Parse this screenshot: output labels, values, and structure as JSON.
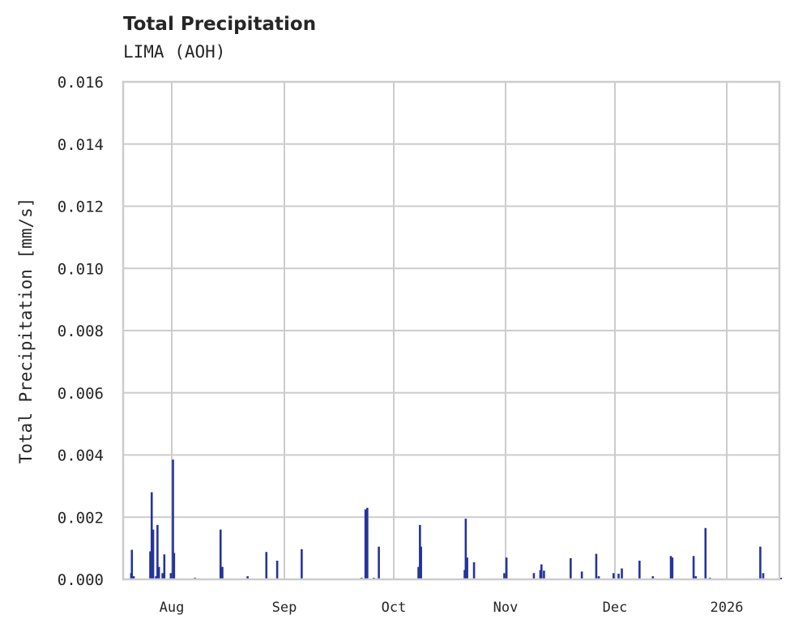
{
  "header": {
    "title": "Total Precipitation",
    "subtitle": "LIMA (AOH)"
  },
  "axes": {
    "ylabel": "Total Precipitation [mm/s]",
    "yticks": [
      "0.000",
      "0.002",
      "0.004",
      "0.006",
      "0.008",
      "0.010",
      "0.012",
      "0.014",
      "0.016"
    ],
    "xticks": [
      "Aug",
      "Sep",
      "Oct",
      "Nov",
      "Dec",
      "2026"
    ]
  },
  "colors": {
    "series": "#25349a",
    "grid": "#cccccc",
    "frame": "#cccccc"
  },
  "chart_data": {
    "type": "bar",
    "title": "Total Precipitation",
    "subtitle": "LIMA (AOH)",
    "xlabel": "",
    "ylabel": "Total Precipitation [mm/s]",
    "ylim": [
      0,
      0.016
    ],
    "xlim": [
      "2025-07-18",
      "2026-01-18"
    ],
    "grid": true,
    "legend": null,
    "xtick_labels": [
      "Aug",
      "Sep",
      "Oct",
      "Nov",
      "Dec",
      "2026"
    ],
    "ytick_labels": [
      "0.000",
      "0.002",
      "0.004",
      "0.006",
      "0.008",
      "0.010",
      "0.012",
      "0.014",
      "0.016"
    ],
    "series": [
      {
        "name": "Total Precipitation",
        "points": [
          {
            "day": 1.3,
            "value": 0.0002
          },
          {
            "day": 1.5,
            "value": 0.00095
          },
          {
            "day": 2.0,
            "value": 0.0001
          },
          {
            "day": 6.6,
            "value": 0.0009
          },
          {
            "day": 7.0,
            "value": 0.0028
          },
          {
            "day": 7.4,
            "value": 0.0016
          },
          {
            "day": 8.2,
            "value": 0.0001
          },
          {
            "day": 8.6,
            "value": 0.00175
          },
          {
            "day": 9.0,
            "value": 0.0004
          },
          {
            "day": 10.0,
            "value": 0.0002
          },
          {
            "day": 10.5,
            "value": 0.0008
          },
          {
            "day": 12.3,
            "value": 0.0002
          },
          {
            "day": 12.9,
            "value": 0.00385
          },
          {
            "day": 13.2,
            "value": 0.00085
          },
          {
            "day": 19.0,
            "value": 5e-05
          },
          {
            "day": 26.1,
            "value": 0.0016
          },
          {
            "day": 26.6,
            "value": 0.0004
          },
          {
            "day": 33.6,
            "value": 0.0001
          },
          {
            "day": 38.8,
            "value": 0.00088
          },
          {
            "day": 41.8,
            "value": 0.0006
          },
          {
            "day": 48.6,
            "value": 0.00097
          },
          {
            "day": 65.2,
            "value": 5e-05
          },
          {
            "day": 66.3,
            "value": 0.00225
          },
          {
            "day": 66.8,
            "value": 0.0023
          },
          {
            "day": 68.6,
            "value": 5e-05
          },
          {
            "day": 70.0,
            "value": 0.00105
          },
          {
            "day": 81.0,
            "value": 0.0004
          },
          {
            "day": 81.4,
            "value": 0.00175
          },
          {
            "day": 81.7,
            "value": 0.00105
          },
          {
            "day": 93.8,
            "value": 0.0003
          },
          {
            "day": 94.1,
            "value": 0.00195
          },
          {
            "day": 94.5,
            "value": 0.0007
          },
          {
            "day": 96.4,
            "value": 0.00055
          },
          {
            "day": 104.8,
            "value": 0.0002
          },
          {
            "day": 105.4,
            "value": 0.0007
          },
          {
            "day": 113.0,
            "value": 0.0002
          },
          {
            "day": 114.8,
            "value": 0.0003
          },
          {
            "day": 115.1,
            "value": 0.00048
          },
          {
            "day": 115.8,
            "value": 0.00028
          },
          {
            "day": 123.2,
            "value": 0.00068
          },
          {
            "day": 126.3,
            "value": 0.00025
          },
          {
            "day": 130.3,
            "value": 0.00082
          },
          {
            "day": 131.0,
            "value": 0.0001
          },
          {
            "day": 135.1,
            "value": 0.0002
          },
          {
            "day": 136.5,
            "value": 0.00018
          },
          {
            "day": 137.4,
            "value": 0.00035
          },
          {
            "day": 142.3,
            "value": 0.0006
          },
          {
            "day": 146.0,
            "value": 0.0001
          },
          {
            "day": 151.0,
            "value": 0.00075
          },
          {
            "day": 151.4,
            "value": 0.0007
          },
          {
            "day": 157.3,
            "value": 0.00075
          },
          {
            "day": 157.9,
            "value": 0.0001
          },
          {
            "day": 160.6,
            "value": 0.00165
          },
          {
            "day": 161.8,
            "value": 5e-05
          },
          {
            "day": 175.8,
            "value": 0.00105
          },
          {
            "day": 176.6,
            "value": 0.0002
          },
          {
            "day": 181.5,
            "value": 5e-05
          }
        ]
      }
    ]
  }
}
